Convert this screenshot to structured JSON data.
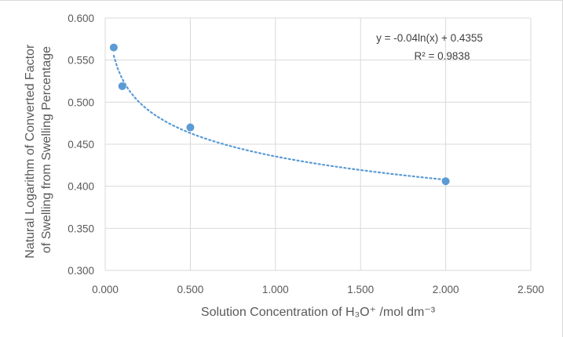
{
  "chart_data": {
    "type": "scatter",
    "xlabel": "Solution Concentration of H₃O⁺ /mol dm⁻³",
    "ylabel_lines": [
      "Natural Logarithm of Converted Factor",
      "of Swelling from Swelling Percentage"
    ],
    "xlim": [
      0,
      2.5
    ],
    "ylim": [
      0.3,
      0.6
    ],
    "x_ticks": [
      "0.000",
      "0.500",
      "1.000",
      "1.500",
      "2.000",
      "2.500"
    ],
    "y_ticks": [
      "0.300",
      "0.350",
      "0.400",
      "0.450",
      "0.500",
      "0.550",
      "0.600"
    ],
    "grid": true,
    "points": [
      {
        "x": 0.05,
        "y": 0.565
      },
      {
        "x": 0.1,
        "y": 0.519
      },
      {
        "x": 0.5,
        "y": 0.47
      },
      {
        "x": 2.0,
        "y": 0.406
      }
    ],
    "trendline": {
      "type": "logarithmic",
      "a": -0.04,
      "b": 0.4355,
      "x_from": 0.05,
      "x_to": 2.0,
      "equation_label": "y = -0.04ln(x) + 0.4355",
      "r2_label": "R² = 0.9838"
    },
    "colors": {
      "marker": "#5b9bd5",
      "trendline": "#5b9bd5",
      "grid": "#d9d9d9",
      "text": "#595959"
    }
  }
}
